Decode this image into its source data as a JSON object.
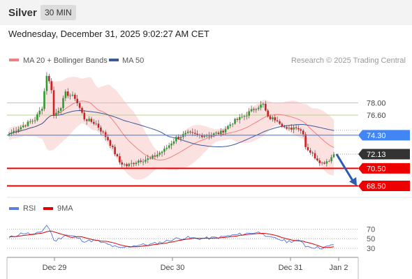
{
  "header": {
    "symbol": "Silver",
    "timeframe": "30 MIN"
  },
  "datetime": "Wednesday, December 31, 2025 9:02:27 AM CET",
  "colors": {
    "up": "#2e9d2e",
    "down": "#d01f1f",
    "ma20": "#f08080",
    "ma50": "#3a5a9a",
    "band": "#fcdcdc",
    "pivot": "#4285f4",
    "support": "#ee0000",
    "resistance": "#b6d48a",
    "rsi": "#5b7fde",
    "rsi_ma": "#dd0000",
    "current": "#333333"
  },
  "chart_data": [
    {
      "type": "candlestick",
      "legend": [
        {
          "name": "MA 20 + Bollinger Bands",
          "color": "#f08080"
        },
        {
          "name": "MA 50",
          "color": "#3a5a9a"
        }
      ],
      "watermark": "Research © 2025 Trading Central",
      "x_ticks": [
        "Dec 29",
        "Dec 30",
        "Dec 31",
        "Jan 2"
      ],
      "ylim": [
        67.66,
        82.03
      ],
      "levels": [
        {
          "label": "78.00",
          "value": 78.0,
          "kind": "resistance"
        },
        {
          "label": "76.60",
          "value": 76.6,
          "kind": "resistance"
        },
        {
          "label": "74.30",
          "value": 74.3,
          "kind": "pivot"
        },
        {
          "label": "72.13",
          "value": 72.13,
          "kind": "current"
        },
        {
          "label": "70.50",
          "value": 70.5,
          "kind": "support"
        },
        {
          "label": "68.50",
          "value": 68.5,
          "kind": "support"
        }
      ],
      "arrow": {
        "from": 72.13,
        "to": 68.5,
        "direction": "down"
      },
      "anchors": [
        {
          "i": 0,
          "close": 74.45
        },
        {
          "i": 6,
          "close": 75.4
        },
        {
          "i": 11,
          "close": 76.1
        },
        {
          "i": 14,
          "close": 77.5
        },
        {
          "i": 16,
          "close": 81.2
        },
        {
          "i": 18,
          "close": 79.6
        },
        {
          "i": 19,
          "close": 76.5
        },
        {
          "i": 22,
          "close": 77.6
        },
        {
          "i": 24,
          "close": 79.1
        },
        {
          "i": 28,
          "close": 78.6
        },
        {
          "i": 32,
          "close": 76.2
        },
        {
          "i": 37,
          "close": 75.6
        },
        {
          "i": 42,
          "close": 73.8
        },
        {
          "i": 47,
          "close": 71.2
        },
        {
          "i": 50,
          "close": 70.8
        },
        {
          "i": 55,
          "close": 71.4
        },
        {
          "i": 60,
          "close": 71.6
        },
        {
          "i": 66,
          "close": 72.6
        },
        {
          "i": 71,
          "close": 74.0
        },
        {
          "i": 76,
          "close": 74.5
        },
        {
          "i": 80,
          "close": 74.3
        },
        {
          "i": 85,
          "close": 74.3
        },
        {
          "i": 90,
          "close": 74.6
        },
        {
          "i": 95,
          "close": 75.8
        },
        {
          "i": 100,
          "close": 76.5
        },
        {
          "i": 105,
          "close": 77.5
        },
        {
          "i": 108,
          "close": 77.8
        },
        {
          "i": 110,
          "close": 76.3
        },
        {
          "i": 114,
          "close": 76.1
        },
        {
          "i": 118,
          "close": 74.9
        },
        {
          "i": 122,
          "close": 75.3
        },
        {
          "i": 125,
          "close": 74.6
        },
        {
          "i": 126,
          "close": 73.0
        },
        {
          "i": 130,
          "close": 71.8
        },
        {
          "i": 133,
          "close": 71.1
        },
        {
          "i": 136,
          "close": 71.5
        },
        {
          "i": 138,
          "close": 72.1
        }
      ],
      "n_bars": 139
    },
    {
      "type": "line",
      "legend": [
        {
          "name": "RSI",
          "color": "#5b7fde"
        },
        {
          "name": "9MA",
          "color": "#dd0000"
        }
      ],
      "ylim": [
        17,
        85
      ],
      "y_ticks": [
        "70",
        "50",
        "30"
      ],
      "y_tick_values": [
        70,
        50,
        30
      ],
      "rsi_anchors": [
        {
          "i": 0,
          "v": 52
        },
        {
          "i": 6,
          "v": 62
        },
        {
          "i": 11,
          "v": 58
        },
        {
          "i": 14,
          "v": 66
        },
        {
          "i": 16,
          "v": 78
        },
        {
          "i": 18,
          "v": 62
        },
        {
          "i": 19,
          "v": 45
        },
        {
          "i": 22,
          "v": 52
        },
        {
          "i": 24,
          "v": 58
        },
        {
          "i": 28,
          "v": 54
        },
        {
          "i": 32,
          "v": 45
        },
        {
          "i": 37,
          "v": 46
        },
        {
          "i": 42,
          "v": 38
        },
        {
          "i": 47,
          "v": 30
        },
        {
          "i": 50,
          "v": 33
        },
        {
          "i": 55,
          "v": 37
        },
        {
          "i": 60,
          "v": 38
        },
        {
          "i": 66,
          "v": 44
        },
        {
          "i": 71,
          "v": 50
        },
        {
          "i": 76,
          "v": 52
        },
        {
          "i": 80,
          "v": 50
        },
        {
          "i": 85,
          "v": 51
        },
        {
          "i": 90,
          "v": 53
        },
        {
          "i": 95,
          "v": 57
        },
        {
          "i": 100,
          "v": 60
        },
        {
          "i": 105,
          "v": 63
        },
        {
          "i": 108,
          "v": 62
        },
        {
          "i": 110,
          "v": 52
        },
        {
          "i": 114,
          "v": 50
        },
        {
          "i": 118,
          "v": 44
        },
        {
          "i": 122,
          "v": 46
        },
        {
          "i": 125,
          "v": 42
        },
        {
          "i": 126,
          "v": 35
        },
        {
          "i": 130,
          "v": 32
        },
        {
          "i": 133,
          "v": 31
        },
        {
          "i": 136,
          "v": 34
        },
        {
          "i": 138,
          "v": 38
        }
      ]
    }
  ]
}
